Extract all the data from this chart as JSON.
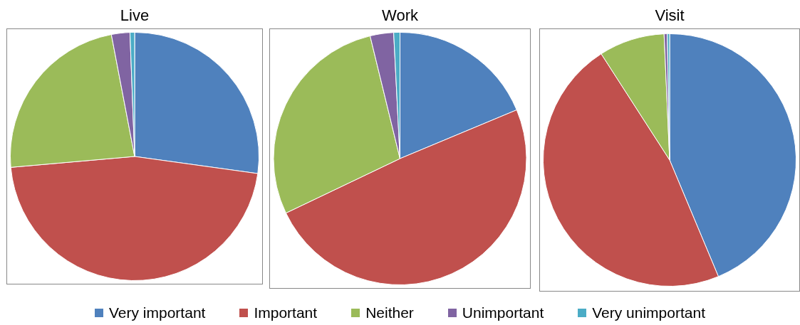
{
  "chart_data": [
    {
      "type": "pie",
      "title": "Live",
      "categories": [
        "Very important",
        "Important",
        "Neither",
        "Unimportant",
        "Very unimportant"
      ],
      "values": [
        27.2,
        46.4,
        23.4,
        2.4,
        0.6
      ],
      "colors": [
        "#4f81bd",
        "#c0504d",
        "#9bbb59",
        "#8064a2",
        "#4bacc6"
      ],
      "legend": "bottom"
    },
    {
      "type": "pie",
      "title": "Work",
      "categories": [
        null,
        null,
        null,
        null,
        null
      ],
      "values": [
        18.7,
        49.2,
        28.3,
        3.0,
        0.8
      ],
      "colors": [
        "#4f81bd",
        "#c0504d",
        "#9bbb59",
        "#8064a2",
        "#4bacc6"
      ]
    },
    {
      "type": "pie",
      "title": "Visit",
      "categories": [
        null,
        null,
        null,
        null,
        null
      ],
      "values": [
        43.7,
        47.2,
        8.4,
        0.4,
        0.3
      ],
      "colors": [
        "#4f81bd",
        "#c0504d",
        "#9bbb59",
        "#8064a2",
        "#4bacc6"
      ]
    }
  ]
}
